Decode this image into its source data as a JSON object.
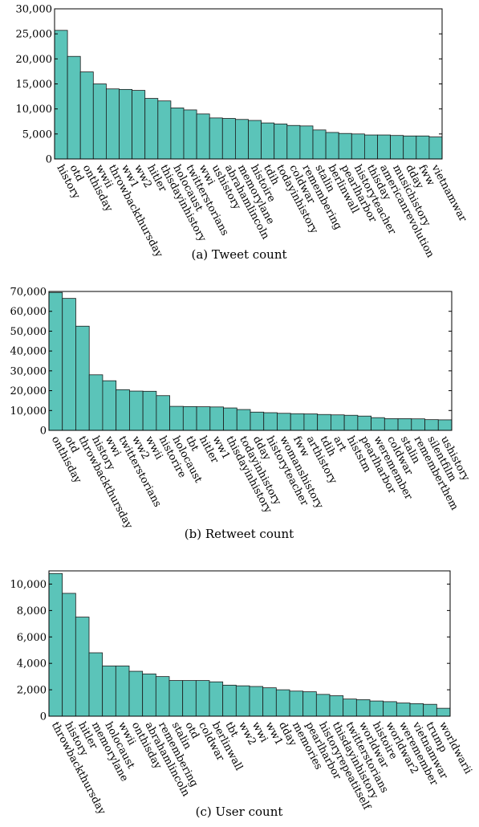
{
  "bar_color": "#5bc4b9",
  "chart_data": [
    {
      "type": "bar",
      "caption": "(a)  Tweet count",
      "categories": [
        "history",
        "otd",
        "onthisday",
        "wwii",
        "throwbackthursday",
        "ww1",
        "ww2",
        "hitler",
        "thisdayinhistory",
        "holocaust",
        "twitterstorians",
        "wwi",
        "ushistory",
        "abrahamlincoln",
        "memorylane",
        "histoire",
        "tdih",
        "todayinhistory",
        "coldwar",
        "remembering",
        "stalin",
        "berlinwall",
        "pearlharbor",
        "historyteacher",
        "thisday",
        "americanrevolution",
        "musichistory",
        "dday",
        "fww",
        "vietnamwar"
      ],
      "values": [
        25700,
        20500,
        17400,
        15000,
        14000,
        13900,
        13700,
        12100,
        11600,
        10200,
        9800,
        9000,
        8200,
        8100,
        7900,
        7700,
        7200,
        7000,
        6700,
        6600,
        5800,
        5300,
        5100,
        5000,
        4800,
        4800,
        4700,
        4600,
        4600,
        4400
      ],
      "ylim": [
        0,
        30000
      ],
      "yticks": [
        "0",
        "5,000",
        "10,000",
        "15,000",
        "20,000",
        "25,000",
        "30,000"
      ],
      "ytick_values": [
        0,
        5000,
        10000,
        15000,
        20000,
        25000,
        30000
      ]
    },
    {
      "type": "bar",
      "caption": "(b)  Retweet count",
      "categories": [
        "onthisday",
        "otd",
        "throwbackthursday",
        "history",
        "wwi",
        "twitterstorians",
        "ww2",
        "wwii",
        "historire",
        "holocaust",
        "tbt",
        "hitler",
        "ww1",
        "thisdayinhistory",
        "todayinhistory",
        "dday",
        "historyteacher",
        "womanshistory",
        "fww",
        "arthistory",
        "tdih",
        "art",
        "histstm",
        "pearlharbor",
        "weremember",
        "coldwar",
        "stalin",
        "rememberthem",
        "silentfilm",
        "ushistory"
      ],
      "values": [
        69500,
        66500,
        52500,
        28000,
        25000,
        20500,
        19800,
        19700,
        17500,
        12100,
        12000,
        11900,
        11800,
        11300,
        10500,
        9200,
        8900,
        8600,
        8400,
        8300,
        8000,
        7800,
        7600,
        7200,
        6400,
        5900,
        5900,
        5800,
        5400,
        5300
      ],
      "ylim": [
        0,
        70000
      ],
      "yticks": [
        "0",
        "10,000",
        "20,000",
        "30,000",
        "40,000",
        "50,000",
        "60,000",
        "70,000"
      ],
      "ytick_values": [
        0,
        10000,
        20000,
        30000,
        40000,
        50000,
        60000,
        70000
      ]
    },
    {
      "type": "bar",
      "caption": "(c)  User count",
      "categories": [
        "throwbackthursday",
        "history",
        "hitler",
        "memorylane",
        "holocaust",
        "wwii",
        "onthisday",
        "abrahamlincoln",
        "remembering",
        "stalin",
        "otd",
        "coldwar",
        "berlinwall",
        "tbt",
        "ww2",
        "wwi",
        "ww1",
        "dday",
        "memories",
        "pearlharbor",
        "historyrepeatitself",
        "thisdayinhistory",
        "twitterstorians",
        "worldwar",
        "histoire",
        "worldwar2",
        "weremember",
        "vietnamwar",
        "trump",
        "worldwarii"
      ],
      "values": [
        10800,
        9300,
        7500,
        4800,
        3800,
        3800,
        3400,
        3200,
        3000,
        2700,
        2700,
        2700,
        2600,
        2350,
        2300,
        2250,
        2150,
        2000,
        1900,
        1850,
        1650,
        1550,
        1300,
        1250,
        1150,
        1100,
        1000,
        950,
        900,
        600
      ],
      "ylim": [
        0,
        11000
      ],
      "yticks": [
        "0",
        "2,000",
        "4,000",
        "6,000",
        "8,000",
        "10,000"
      ],
      "ytick_values": [
        0,
        2000,
        4000,
        6000,
        8000,
        10000
      ]
    }
  ]
}
